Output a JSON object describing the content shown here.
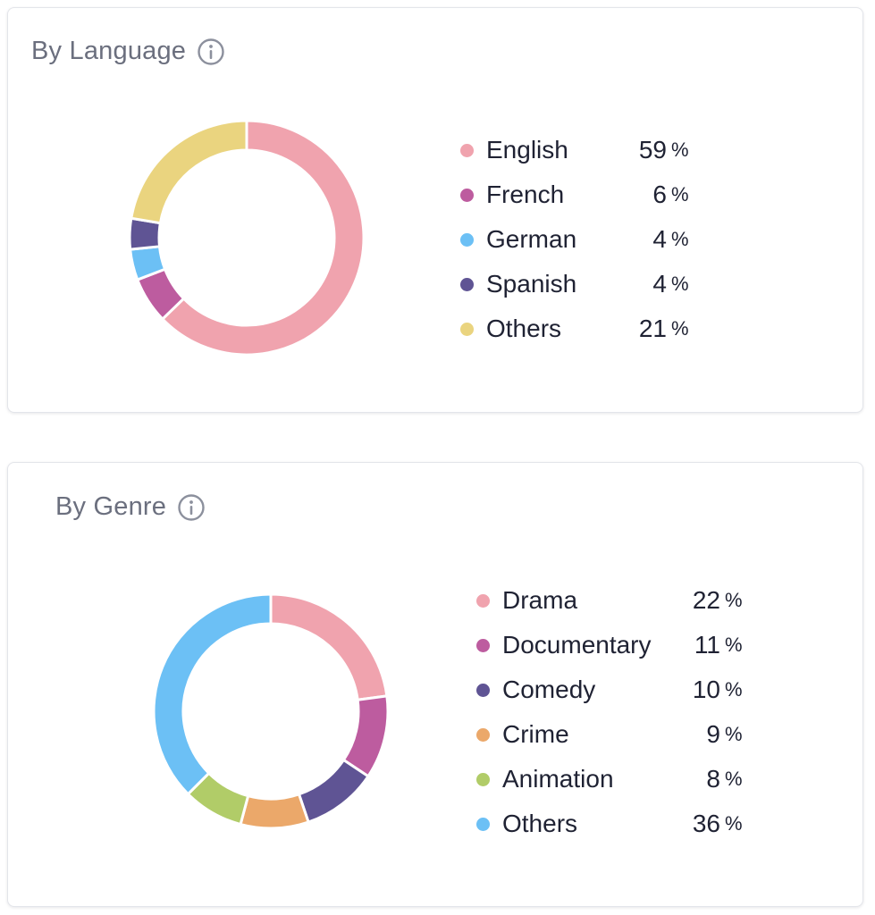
{
  "colors": {
    "card_border": "#e3e5ea",
    "title_text": "#6b6f7e",
    "body_text": "#1f2233"
  },
  "chart_data": [
    {
      "type": "pie",
      "title": "By Language",
      "title_icon": "info-icon",
      "donut": true,
      "legend_position": "right",
      "categories": [
        "English",
        "French",
        "German",
        "Spanish",
        "Others"
      ],
      "values": [
        59,
        6,
        4,
        4,
        21
      ],
      "unit": "%",
      "colors": [
        "#f0a3ae",
        "#bd5c9f",
        "#6cc0f5",
        "#5f5494",
        "#ead47f"
      ]
    },
    {
      "type": "pie",
      "title": "By Genre",
      "title_icon": "info-icon",
      "donut": true,
      "legend_position": "right",
      "categories": [
        "Drama",
        "Documentary",
        "Comedy",
        "Crime",
        "Animation",
        "Others"
      ],
      "values": [
        22,
        11,
        10,
        9,
        8,
        36
      ],
      "unit": "%",
      "colors": [
        "#f0a3ae",
        "#bd5c9f",
        "#5f5494",
        "#eba86a",
        "#b1cc68",
        "#6cc0f5"
      ]
    }
  ]
}
